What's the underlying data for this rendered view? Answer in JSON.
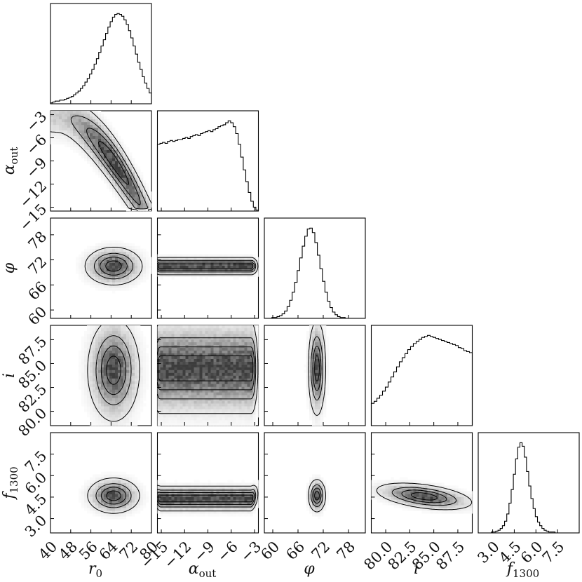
{
  "chart_data": {
    "type": "corner",
    "parameters": [
      {
        "key": "r0",
        "label_main": "r",
        "label_sub": "0",
        "range": [
          40,
          80
        ],
        "ticks": [
          "40",
          "48",
          "56",
          "64",
          "72",
          "80"
        ],
        "tick_values": [
          40,
          48,
          56,
          64,
          72,
          80
        ],
        "peak": 65,
        "hist": [
          1,
          2,
          3,
          3,
          4,
          4,
          5,
          6,
          7,
          8,
          10,
          12,
          14,
          17,
          20,
          24,
          28,
          33,
          38,
          44,
          50,
          57,
          64,
          71,
          78,
          85,
          91,
          96,
          99,
          100,
          99,
          97,
          93,
          88,
          81,
          73,
          64,
          55,
          46,
          38,
          30,
          23,
          17,
          12
        ]
      },
      {
        "key": "alpha_out",
        "label_main": "α",
        "label_sub": "out",
        "range": [
          -15.5,
          -2.5
        ],
        "ticks": [
          "−15",
          "−12",
          "−9",
          "−6",
          "−3"
        ],
        "tick_values": [
          -15,
          -12,
          -9,
          -6,
          -3
        ],
        "peak": -6,
        "hist": [
          68,
          69,
          70,
          69,
          71,
          72,
          71,
          72,
          73,
          73,
          74,
          75,
          74,
          76,
          77,
          78,
          77,
          79,
          80,
          81,
          82,
          81,
          83,
          84,
          86,
          87,
          88,
          90,
          92,
          90,
          86,
          79,
          68,
          55,
          42,
          30,
          19,
          10,
          4,
          1
        ]
      },
      {
        "key": "phi",
        "label_main": "φ",
        "label_sub": "",
        "range": [
          58,
          82
        ],
        "ticks": [
          "60",
          "66",
          "72",
          "78"
        ],
        "tick_values": [
          60,
          66,
          72,
          78
        ],
        "peak": 70.5,
        "hist": [
          0,
          0,
          0,
          1,
          1,
          2,
          3,
          5,
          8,
          13,
          20,
          29,
          40,
          53,
          67,
          80,
          91,
          99,
          100,
          95,
          84,
          70,
          55,
          41,
          29,
          19,
          12,
          7,
          4,
          2,
          1,
          1,
          0,
          0,
          0,
          0,
          0,
          0,
          0,
          0
        ]
      },
      {
        "key": "i",
        "label_main": "i",
        "label_sub": "",
        "range": [
          78.5,
          89
        ],
        "ticks": [
          "80.0",
          "82.5",
          "85.0",
          "87.5"
        ],
        "tick_values": [
          80,
          82.5,
          85,
          87.5
        ],
        "peak": 84.5,
        "hist": [
          22,
          24,
          27,
          30,
          34,
          38,
          43,
          48,
          53,
          58,
          63,
          67,
          71,
          75,
          78,
          81,
          83,
          85,
          87,
          88,
          89,
          88,
          87,
          86,
          85,
          84,
          83,
          82,
          81,
          80,
          79,
          77,
          76,
          74,
          73,
          72
        ]
      },
      {
        "key": "f1300",
        "label_main": "f",
        "label_sub": "1300",
        "range": [
          2,
          9
        ],
        "ticks": [
          "3.0",
          "4.5",
          "6.0",
          "7.5"
        ],
        "tick_values": [
          3,
          4.5,
          6,
          7.5
        ],
        "peak": 4.5,
        "hist": [
          0,
          0,
          0,
          0,
          0,
          0,
          1,
          1,
          2,
          3,
          5,
          8,
          13,
          21,
          33,
          48,
          65,
          82,
          95,
          100,
          96,
          84,
          68,
          52,
          38,
          27,
          18,
          12,
          8,
          5,
          3,
          2,
          1,
          1,
          1,
          0,
          0,
          0,
          0,
          0,
          0,
          0,
          0,
          0,
          0,
          0
        ]
      }
    ],
    "pairs": [
      {
        "x": "r0",
        "y": "alpha_out",
        "shape": "banana"
      },
      {
        "x": "r0",
        "y": "phi",
        "cx": 65,
        "cy": 70.5,
        "sx": 5.5,
        "sy": 2.2,
        "rho": 0
      },
      {
        "x": "alpha_out",
        "y": "phi",
        "cx": -9,
        "cy": 70.5,
        "sx": 3.6,
        "sy": 1.0,
        "rho": 0,
        "flat_x": true
      },
      {
        "x": "phi",
        "y": "i",
        "cx": 70.5,
        "cy": 84.5,
        "sx": 1.0,
        "sy": 2.4,
        "rho": 0
      },
      {
        "x": "r0",
        "y": "i",
        "cx": 65,
        "cy": 84.3,
        "sx": 5.0,
        "sy": 2.6,
        "rho": 0
      },
      {
        "x": "alpha_out",
        "y": "i",
        "cx": -9,
        "cy": 84.5,
        "sx": 3.6,
        "sy": 2.3,
        "rho": 0,
        "flat_x": true
      },
      {
        "x": "r0",
        "y": "f1300",
        "cx": 65,
        "cy": 4.6,
        "sx": 5.0,
        "sy": 0.6,
        "rho": 0
      },
      {
        "x": "alpha_out",
        "y": "f1300",
        "cx": -9,
        "cy": 4.4,
        "sx": 3.6,
        "sy": 0.45,
        "rho": 0.35,
        "flat_x": true
      },
      {
        "x": "phi",
        "y": "f1300",
        "cx": 70.5,
        "cy": 4.6,
        "sx": 1.0,
        "sy": 0.55,
        "rho": 0
      },
      {
        "x": "i",
        "y": "f1300",
        "cx": 84,
        "cy": 4.55,
        "sx": 2.4,
        "sy": 0.45,
        "rho": -0.45
      }
    ],
    "colors": {
      "density": "#000000",
      "contour": "#000000",
      "hist": "#000000"
    },
    "grid": false
  }
}
